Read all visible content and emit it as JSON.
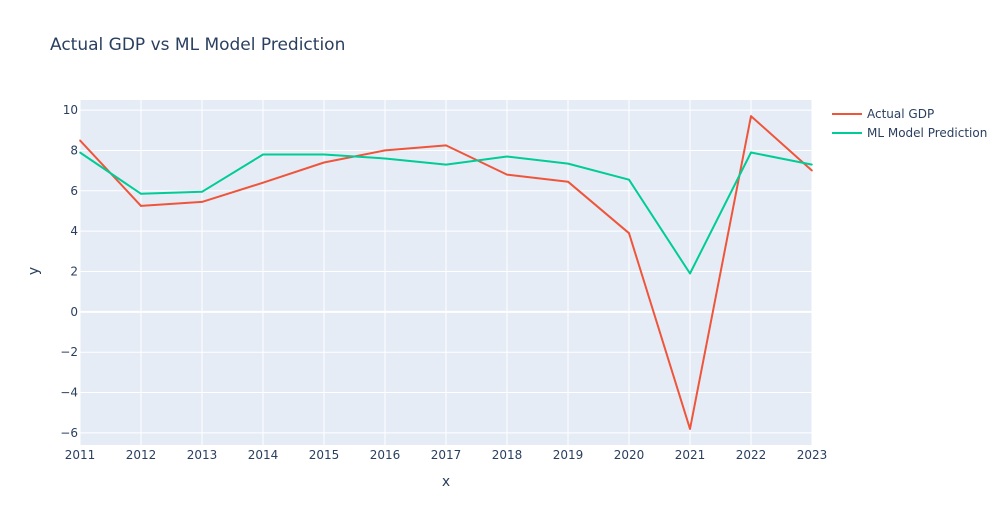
{
  "chart_data": {
    "type": "line",
    "title": "Actual GDP vs ML Model Prediction",
    "xlabel": "x",
    "ylabel": "y",
    "x": [
      2011,
      2012,
      2013,
      2014,
      2015,
      2016,
      2017,
      2018,
      2019,
      2020,
      2021,
      2022,
      2023
    ],
    "xlim": [
      2011,
      2023
    ],
    "ylim": [
      -6.6,
      10.5
    ],
    "yticks": [
      -6,
      -4,
      -2,
      0,
      2,
      4,
      6,
      8,
      10
    ],
    "ytick_labels": [
      "−6",
      "−4",
      "−2",
      "0",
      "2",
      "4",
      "6",
      "8",
      "10"
    ],
    "xticks": [
      2011,
      2012,
      2013,
      2014,
      2015,
      2016,
      2017,
      2018,
      2019,
      2020,
      2021,
      2022,
      2023
    ],
    "xtick_labels": [
      "2011",
      "2012",
      "2013",
      "2014",
      "2015",
      "2016",
      "2017",
      "2018",
      "2019",
      "2020",
      "2021",
      "2022",
      "2023"
    ],
    "grid": true,
    "legend_position": "top-right",
    "plot_background": "#e5ecf6",
    "series": [
      {
        "name": "Actual GDP",
        "color": "#ef553b",
        "values": [
          8.5,
          5.25,
          5.45,
          6.4,
          7.4,
          8.0,
          8.25,
          6.8,
          6.45,
          3.9,
          -5.8,
          9.7,
          7.0
        ]
      },
      {
        "name": "ML Model Prediction",
        "color": "#00cc96",
        "values": [
          7.9,
          5.85,
          5.95,
          7.8,
          7.8,
          7.6,
          7.3,
          7.7,
          7.35,
          6.55,
          1.9,
          7.9,
          7.3
        ]
      }
    ]
  }
}
